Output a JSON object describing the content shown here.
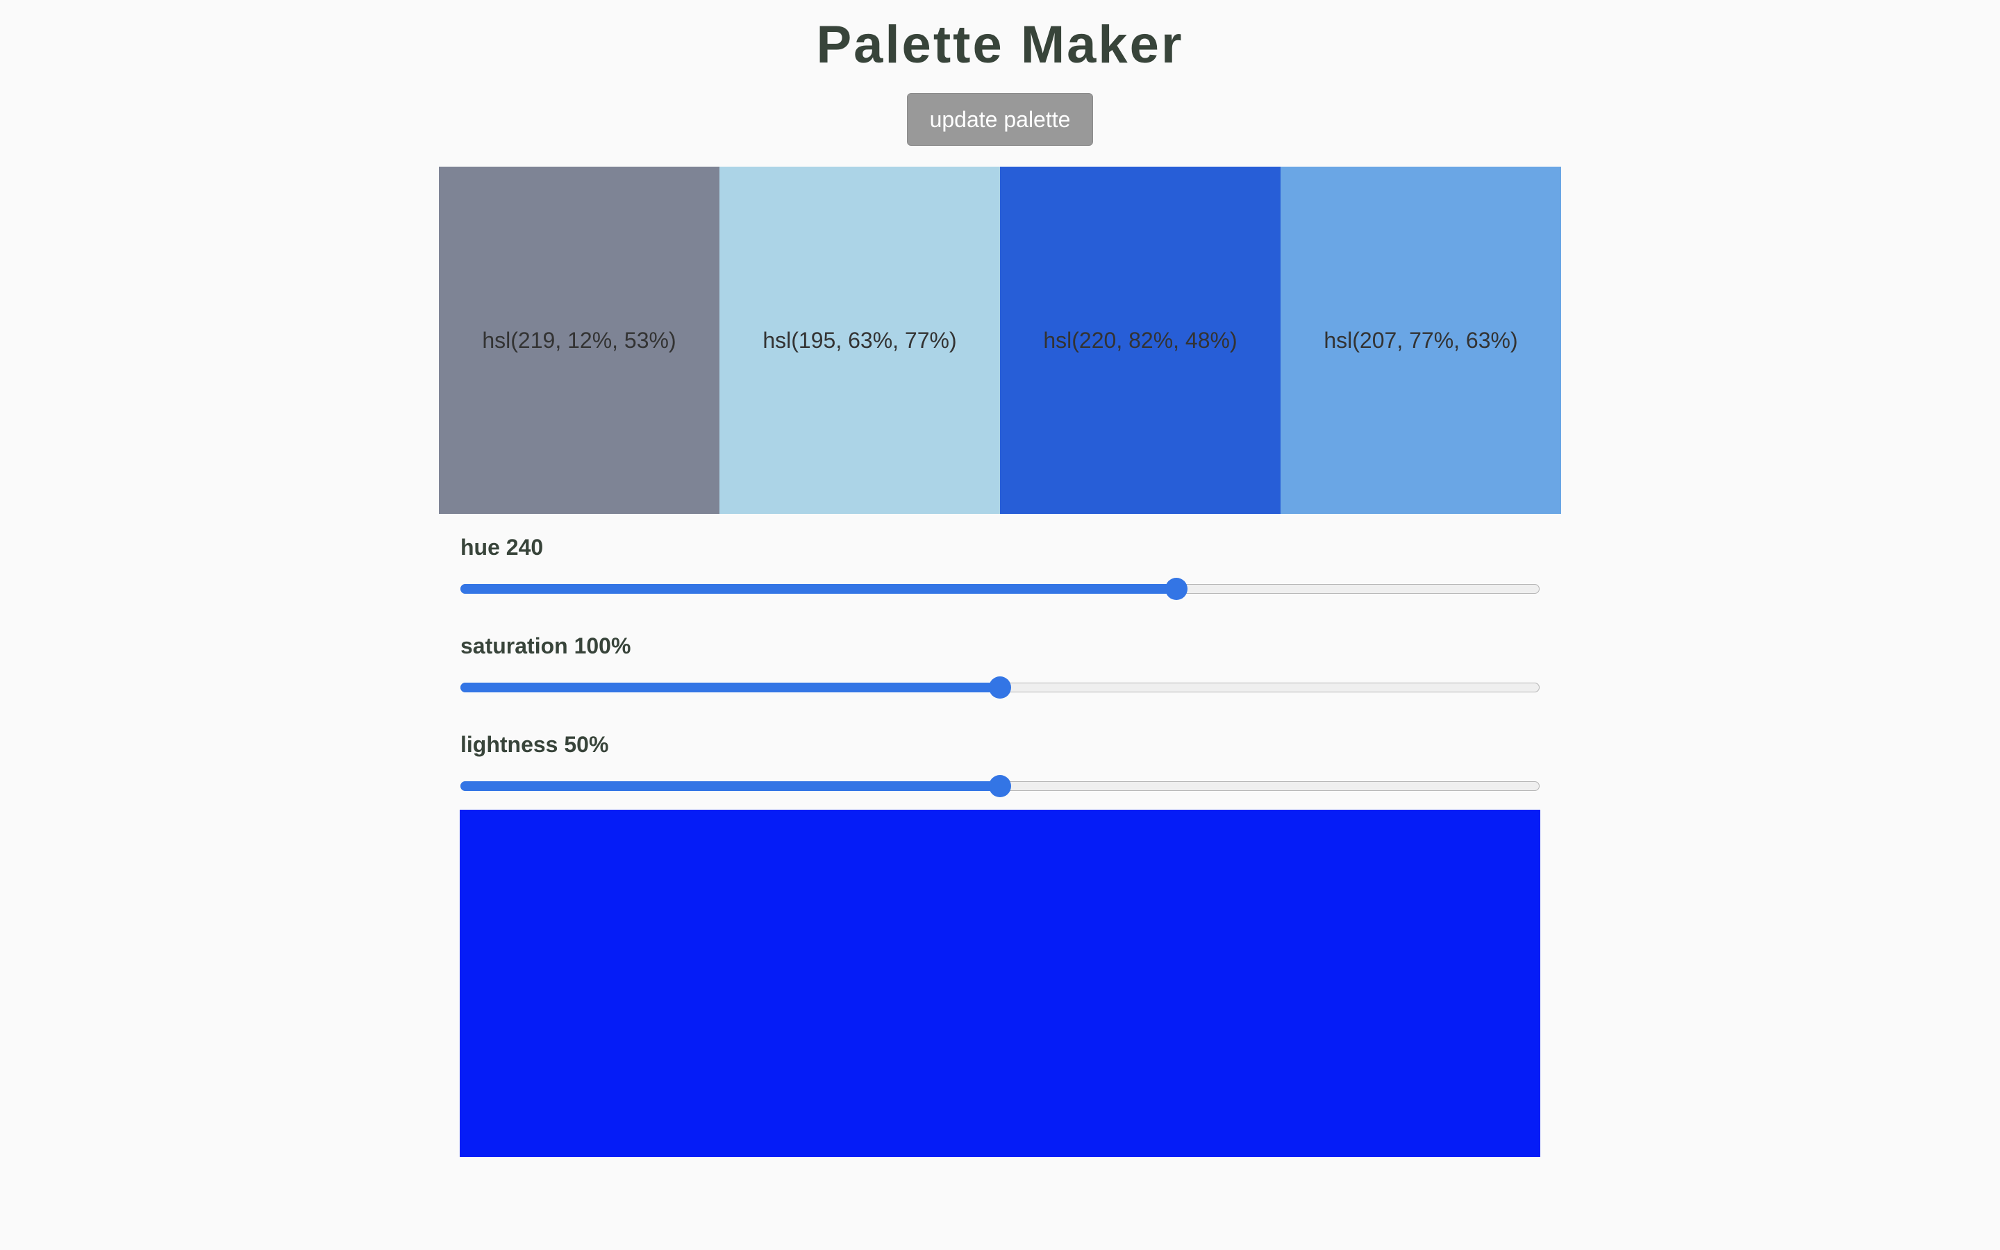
{
  "app": {
    "title": "Palette Maker",
    "update_button_label": "update palette"
  },
  "palette": [
    {
      "label": "hsl(219, 12%, 53%)",
      "color": "#7e8495"
    },
    {
      "label": "hsl(195, 63%, 77%)",
      "color": "#acd4e7"
    },
    {
      "label": "hsl(220, 82%, 48%)",
      "color": "#275ed7"
    },
    {
      "label": "hsl(207, 77%, 63%)",
      "color": "#6aa6e5"
    }
  ],
  "controls": {
    "hue": {
      "label": "hue 240",
      "value": 240,
      "max": 360
    },
    "saturation": {
      "label": "saturation 100%",
      "value": 100,
      "max": 200
    },
    "lightness": {
      "label": "lightness 50%",
      "value": 50,
      "max": 100
    }
  },
  "preview": {
    "color": "#051cf7"
  },
  "colors": {
    "accent": "#3375e5",
    "title_text": "#38443a",
    "button_bg": "#999999",
    "background": "#fafafa"
  }
}
